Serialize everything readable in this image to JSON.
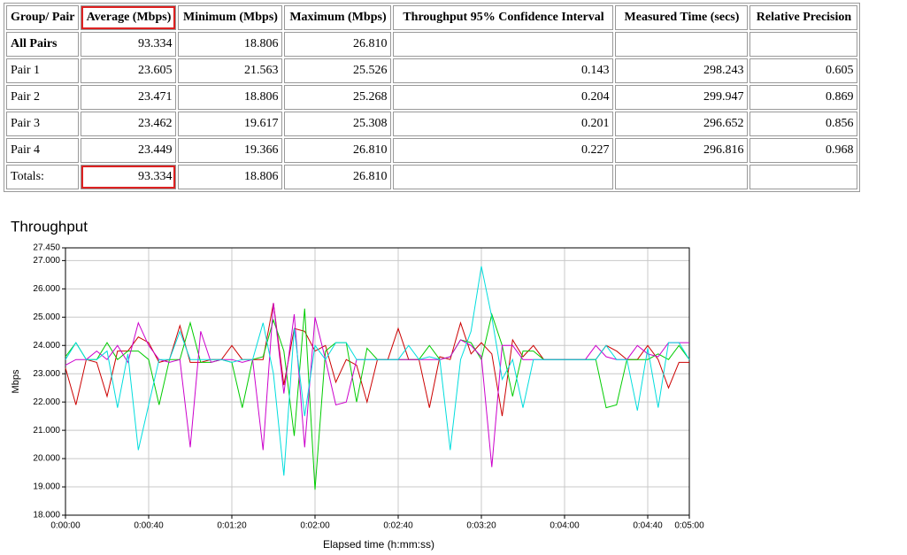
{
  "table": {
    "header": [
      "Group/ Pair",
      "Average (Mbps)",
      "Minimum (Mbps)",
      "Maximum (Mbps)",
      "Throughput 95% Confidence Interval",
      "Measured Time (secs)",
      "Relative Precision"
    ],
    "rows": [
      [
        "All Pairs",
        "93.334",
        "18.806",
        "26.810"
      ],
      [
        "Pair 1",
        "23.605",
        "21.563",
        "25.526",
        "0.143",
        "298.243",
        "0.605"
      ],
      [
        "Pair 2",
        "23.471",
        "18.806",
        "25.268",
        "0.204",
        "299.947",
        "0.869"
      ],
      [
        "Pair 3",
        "23.462",
        "19.617",
        "25.308",
        "0.201",
        "296.652",
        "0.856"
      ],
      [
        "Pair 4",
        "23.449",
        "19.366",
        "26.810",
        "0.227",
        "296.816",
        "0.968"
      ],
      [
        "Totals:",
        "93.334",
        "18.806",
        "26.810"
      ]
    ]
  },
  "chart_data": {
    "type": "line",
    "title": "Throughput",
    "x_label": "Elapsed time (h:mm:ss)",
    "y_label": "Mbps",
    "xlim": [
      0,
      300
    ],
    "ylim": [
      18,
      27.45
    ],
    "xticks": [
      {
        "value": 0,
        "label": "0:00:00"
      },
      {
        "value": 40,
        "label": "0:00:40"
      },
      {
        "value": 80,
        "label": "0:01:20"
      },
      {
        "value": 120,
        "label": "0:02:00"
      },
      {
        "value": 160,
        "label": "0:02:40"
      },
      {
        "value": 200,
        "label": "0:03:20"
      },
      {
        "value": 240,
        "label": "0:04:00"
      },
      {
        "value": 280,
        "label": "0:04:40"
      },
      {
        "value": 300,
        "label": "0:05:00"
      }
    ],
    "yticks": [
      {
        "value": 18,
        "label": "18.000"
      },
      {
        "value": 19,
        "label": "19.000"
      },
      {
        "value": 20,
        "label": "20.000"
      },
      {
        "value": 21,
        "label": "21.000"
      },
      {
        "value": 22,
        "label": "22.000"
      },
      {
        "value": 23,
        "label": "23.000"
      },
      {
        "value": 24,
        "label": "24.000"
      },
      {
        "value": 25,
        "label": "25.000"
      },
      {
        "value": 26,
        "label": "26.000"
      },
      {
        "value": 27,
        "label": "27.000"
      },
      {
        "value": 27.45,
        "label": "27.450"
      }
    ],
    "grid": true,
    "x": [
      0,
      5,
      10,
      15,
      20,
      25,
      30,
      35,
      40,
      45,
      50,
      55,
      60,
      65,
      70,
      75,
      80,
      85,
      90,
      95,
      100,
      105,
      110,
      115,
      120,
      125,
      130,
      135,
      140,
      145,
      150,
      155,
      160,
      165,
      170,
      175,
      180,
      185,
      190,
      195,
      200,
      205,
      210,
      215,
      220,
      225,
      230,
      235,
      240,
      245,
      250,
      255,
      260,
      265,
      270,
      275,
      280,
      285,
      290,
      295,
      300
    ],
    "series": [
      {
        "color": "#cc0000",
        "values": [
          23.2,
          21.9,
          23.5,
          23.4,
          22.2,
          23.8,
          23.8,
          24.3,
          24.1,
          23.4,
          23.5,
          24.7,
          23.4,
          23.4,
          23.5,
          23.5,
          24.0,
          23.5,
          23.5,
          23.5,
          25.5,
          22.6,
          24.6,
          24.5,
          23.8,
          24.0,
          22.7,
          23.5,
          23.3,
          22.0,
          23.5,
          23.5,
          24.6,
          23.5,
          23.5,
          21.8,
          23.6,
          23.5,
          24.8,
          23.7,
          24.1,
          23.7,
          21.5,
          24.2,
          23.6,
          24.0,
          23.5,
          23.5,
          23.5,
          23.5,
          23.5,
          23.5,
          24.0,
          23.8,
          23.5,
          23.5,
          24.0,
          23.5,
          22.5,
          23.4,
          23.4
        ]
      },
      {
        "color": "#00cc00",
        "values": [
          23.6,
          24.1,
          23.5,
          23.5,
          24.1,
          23.5,
          23.8,
          23.8,
          23.5,
          21.9,
          23.5,
          23.5,
          24.8,
          23.4,
          23.4,
          23.5,
          23.4,
          21.8,
          23.5,
          23.6,
          24.9,
          23.8,
          20.8,
          25.3,
          18.9,
          23.8,
          24.1,
          24.1,
          22.0,
          23.9,
          23.5,
          23.5,
          23.5,
          23.5,
          23.5,
          24.0,
          23.5,
          23.6,
          24.2,
          24.1,
          23.5,
          25.1,
          24.0,
          22.2,
          23.8,
          23.8,
          23.5,
          23.5,
          23.5,
          23.5,
          23.5,
          23.5,
          21.8,
          21.9,
          23.5,
          23.5,
          23.5,
          23.7,
          23.5,
          24.0,
          23.5
        ]
      },
      {
        "color": "#cc00cc",
        "values": [
          23.3,
          23.5,
          23.5,
          23.8,
          23.5,
          24.0,
          23.4,
          24.8,
          24.0,
          23.5,
          23.4,
          23.5,
          20.4,
          24.5,
          23.4,
          23.5,
          23.5,
          23.4,
          23.5,
          20.3,
          25.5,
          22.3,
          25.1,
          20.4,
          25.0,
          23.5,
          21.9,
          22.0,
          23.5,
          23.5,
          23.5,
          23.5,
          23.5,
          23.5,
          23.5,
          23.5,
          23.5,
          23.6,
          24.2,
          24.0,
          23.6,
          19.7,
          24.0,
          24.0,
          23.5,
          23.5,
          23.5,
          23.5,
          23.5,
          23.5,
          23.5,
          24.0,
          23.6,
          23.5,
          23.5,
          24.0,
          23.7,
          23.6,
          24.1,
          24.1,
          24.1
        ]
      },
      {
        "color": "#00dddd",
        "values": [
          23.5,
          24.1,
          23.5,
          23.5,
          23.8,
          21.8,
          23.7,
          20.3,
          21.9,
          23.5,
          23.5,
          24.5,
          23.5,
          23.5,
          23.5,
          23.5,
          23.4,
          23.5,
          23.5,
          24.8,
          23.0,
          19.4,
          24.6,
          21.5,
          24.0,
          23.5,
          24.1,
          24.1,
          23.5,
          23.5,
          23.5,
          23.5,
          23.5,
          24.0,
          23.5,
          23.6,
          23.5,
          20.3,
          23.5,
          24.5,
          26.8,
          25.0,
          22.8,
          23.5,
          21.8,
          23.5,
          23.5,
          23.5,
          23.5,
          23.5,
          23.5,
          23.5,
          24.0,
          23.5,
          23.5,
          21.7,
          23.9,
          21.8,
          24.1,
          24.1,
          23.5
        ]
      }
    ]
  }
}
